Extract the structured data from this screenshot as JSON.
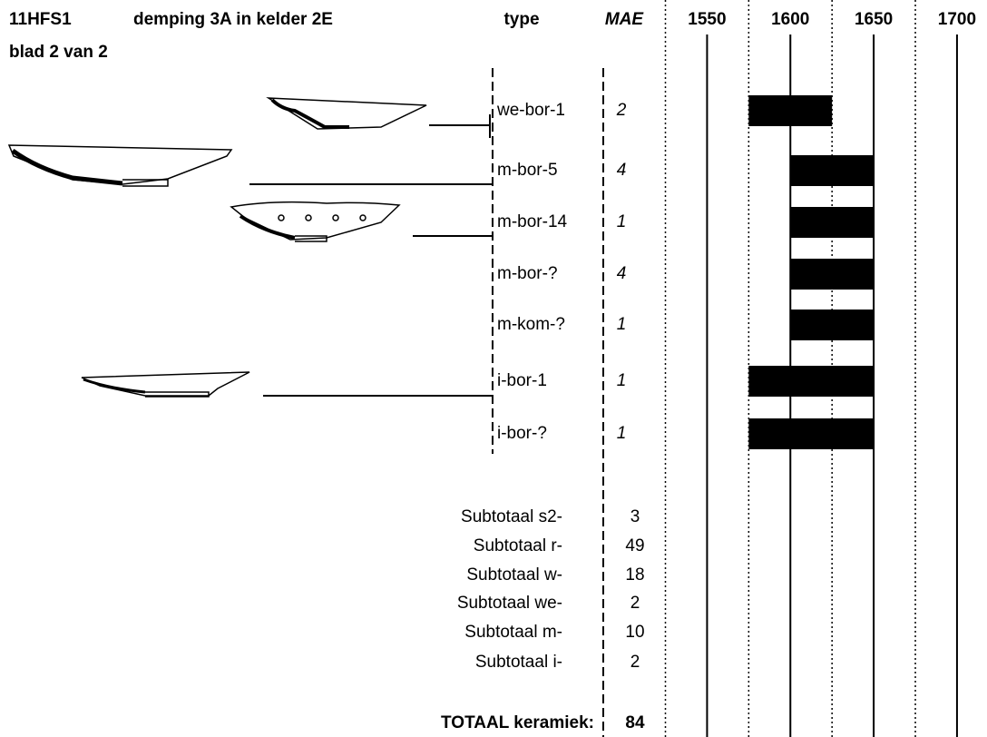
{
  "header": {
    "code": "11HFS1",
    "title": "demping 3A in kelder 2E",
    "sheet": "blad 2 van 2"
  },
  "columns": {
    "type": "type",
    "mae": "MAE"
  },
  "timeline": {
    "xlim": [
      1522,
      1718
    ],
    "ticks": [
      1550,
      1600,
      1650,
      1700
    ],
    "minor_ticks": [
      1525,
      1575,
      1625,
      1675
    ]
  },
  "rows": [
    {
      "type": "we-bor-1",
      "mae": 2,
      "from": 1575,
      "to": 1625
    },
    {
      "type": "m-bor-5",
      "mae": 4,
      "from": 1600,
      "to": 1650
    },
    {
      "type": "m-bor-14",
      "mae": 1,
      "from": 1600,
      "to": 1650
    },
    {
      "type": "m-bor-?",
      "mae": 4,
      "from": 1600,
      "to": 1650
    },
    {
      "type": "m-kom-?",
      "mae": 1,
      "from": 1600,
      "to": 1650
    },
    {
      "type": "i-bor-1",
      "mae": 1,
      "from": 1575,
      "to": 1650
    },
    {
      "type": "i-bor-?",
      "mae": 1,
      "from": 1575,
      "to": 1650
    }
  ],
  "subtotals": [
    {
      "label": "Subtotaal s2-",
      "value": 3
    },
    {
      "label": "Subtotaal r-",
      "value": 49
    },
    {
      "label": "Subtotaal w-",
      "value": 18
    },
    {
      "label": "Subtotaal we-",
      "value": 2
    },
    {
      "label": "Subtotaal m-",
      "value": 10
    },
    {
      "label": "Subtotaal i-",
      "value": 2
    }
  ],
  "total": {
    "label": "TOTAAL keramiek:",
    "value": 84
  }
}
